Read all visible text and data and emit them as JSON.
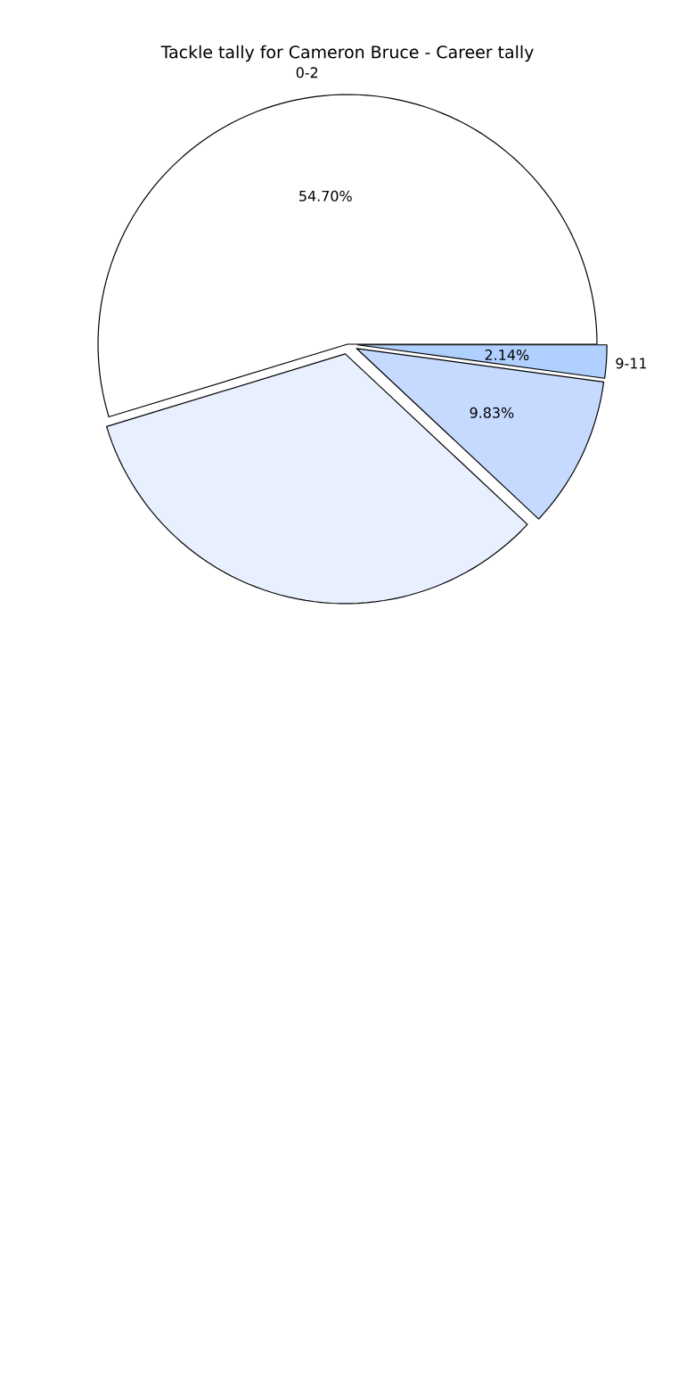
{
  "chart_data": {
    "type": "pie",
    "title": "Tackle tally for Cameron Bruce - Career tally",
    "categories": [
      "0-2",
      null,
      null,
      "9-11"
    ],
    "values": [
      54.7,
      33.33,
      9.83,
      2.14
    ],
    "colors": [
      "#ffffff",
      "#e8f0ff",
      "#c6d9ff",
      "#b0d0ff"
    ],
    "value_labels": [
      "54.70%",
      null,
      "9.83%",
      "2.14%"
    ]
  }
}
